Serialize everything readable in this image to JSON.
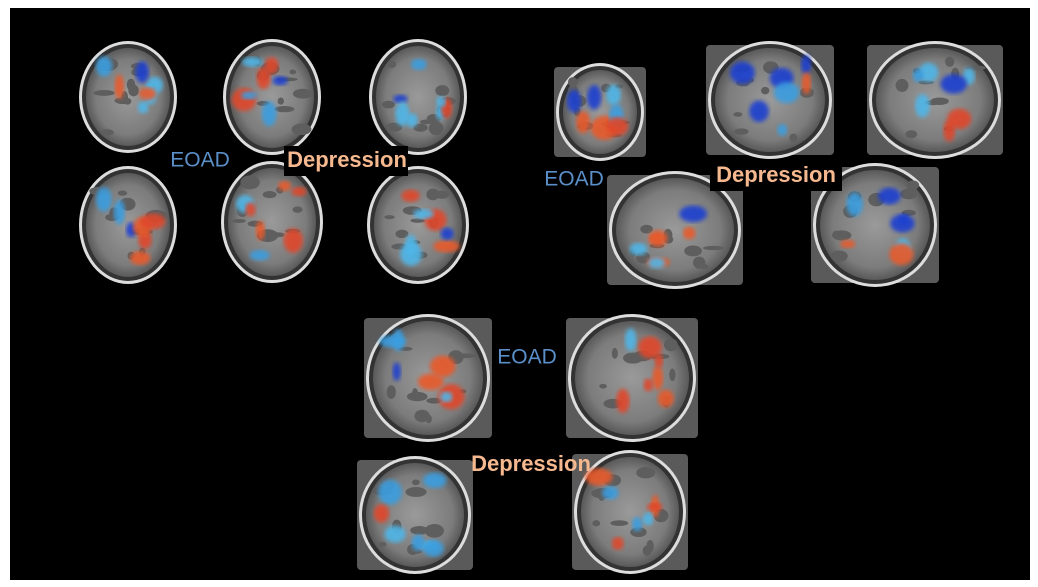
{
  "panels": [
    {
      "group_label": "EOAD",
      "contrast_label": "Depression"
    },
    {
      "group_label": "EOAD",
      "contrast_label": "Depression"
    },
    {
      "group_label": "EOAD",
      "contrast_label": "Depression"
    }
  ]
}
